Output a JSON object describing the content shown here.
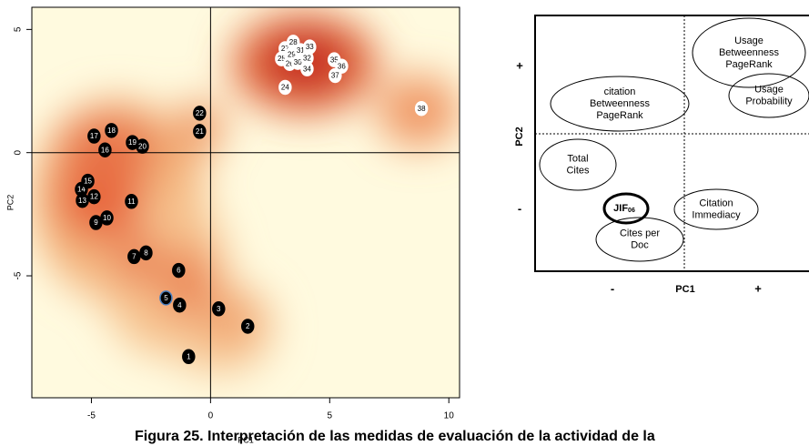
{
  "chart_data": {
    "type": "scatter",
    "x_label": "PC1",
    "y_label": "PC2",
    "xlim": [
      -7.5,
      10.45
    ],
    "ylim": [
      -9.95,
      5.9
    ],
    "xticks": [
      -5,
      0,
      5,
      10
    ],
    "yticks": [
      -5,
      0,
      5
    ],
    "zero_lines": true,
    "series": [
      {
        "color": "#000000",
        "edge": "#000000",
        "text_color": "#ffffff",
        "labels": [
          "1",
          "2",
          "3",
          "4",
          "6",
          "7",
          "8",
          "9",
          "10",
          "11",
          "12",
          "13",
          "14",
          "15",
          "16",
          "17",
          "18",
          "19",
          "20",
          "21",
          "22"
        ],
        "x": [
          -0.92,
          1.56,
          0.34,
          -1.3,
          -1.34,
          -3.21,
          -2.71,
          -4.81,
          -4.35,
          -3.32,
          -4.89,
          -5.38,
          -5.42,
          -5.15,
          -4.43,
          -4.89,
          -4.16,
          -3.28,
          -2.86,
          -0.46,
          -0.46
        ],
        "values": [
          -8.28,
          -7.05,
          -6.34,
          -6.19,
          -4.78,
          -4.22,
          -4.07,
          -2.84,
          -2.65,
          -1.98,
          -1.79,
          -1.94,
          -1.49,
          -1.16,
          0.11,
          0.67,
          0.9,
          0.41,
          0.26,
          0.86,
          1.6
        ]
      },
      {
        "color": "#000000",
        "edge": "#4a7fc0",
        "text_color": "#ffffff",
        "labels": [
          "5"
        ],
        "x": [
          -1.87
        ],
        "values": [
          -5.9
        ]
      },
      {
        "color": "#ffffff",
        "edge": "#ffffff",
        "text_color": "#000000",
        "labels": [
          "24",
          "25",
          "26",
          "27",
          "28",
          "29",
          "30",
          "31",
          "32",
          "33",
          "34",
          "35",
          "36",
          "37",
          "38"
        ],
        "x": [
          3.13,
          2.98,
          3.32,
          3.13,
          3.47,
          3.4,
          3.66,
          3.78,
          4.05,
          4.16,
          4.05,
          5.19,
          5.5,
          5.23,
          8.85
        ],
        "values": [
          2.65,
          3.81,
          3.62,
          4.22,
          4.48,
          3.99,
          3.66,
          4.14,
          3.84,
          4.29,
          3.4,
          3.77,
          3.51,
          3.13,
          1.79
        ]
      }
    ]
  },
  "diagram": {
    "x_label": "PC1",
    "y_label": "PC2",
    "plus": "+",
    "minus": "-",
    "nodes": [
      {
        "lines": [
          "Usage",
          "Betweenness",
          "PageRank"
        ]
      },
      {
        "lines": [
          "citation",
          "Betweenness",
          "PageRank"
        ]
      },
      {
        "lines": [
          "Usage",
          "Probability"
        ]
      },
      {
        "lines": [
          "Total",
          "Cites"
        ]
      },
      {
        "label": "JIF",
        "subscript": "06"
      },
      {
        "lines": [
          "Citation",
          "Immediacy"
        ]
      },
      {
        "lines": [
          "Cites per",
          "Doc"
        ]
      }
    ]
  },
  "caption": "Figura 25. Interpretación de las medidas de evaluación de la actividad de la"
}
